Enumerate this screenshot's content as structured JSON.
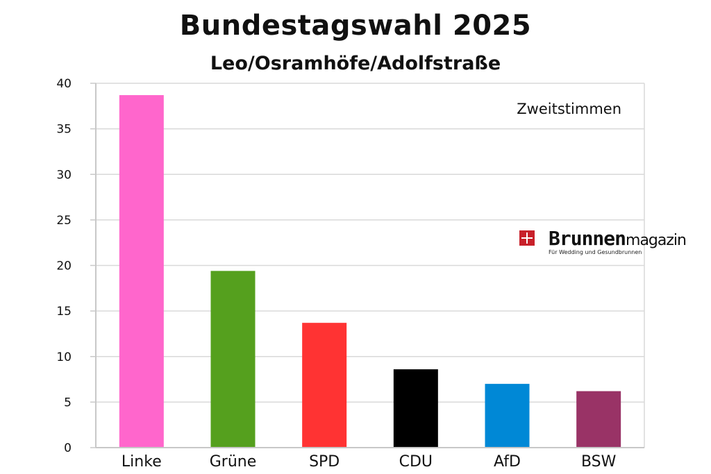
{
  "chart_data": {
    "type": "bar",
    "title": "Bundestagswahl 2025",
    "subtitle": "Leo/Osramhöfe/Adolfstraße",
    "annotation": "Zweitstimmen",
    "categories": [
      "Linke",
      "Grüne",
      "SPD",
      "CDU",
      "AfD",
      "BSW"
    ],
    "values": [
      38.7,
      19.4,
      13.7,
      8.6,
      7.0,
      6.2
    ],
    "colors": [
      "#ff66cc",
      "#55a01e",
      "#ff3333",
      "#000000",
      "#0088d6",
      "#993366"
    ],
    "xlabel": "",
    "ylabel": "",
    "ylim": [
      0,
      40
    ],
    "yticks": [
      "0",
      "5",
      "10",
      "15",
      "20",
      "25",
      "30",
      "35",
      "40"
    ],
    "grid": true,
    "legend": "none"
  },
  "logo": {
    "strong": "Brunnen",
    "light": "magazin",
    "tagline": "Für Wedding und Gesundbrunnen"
  }
}
